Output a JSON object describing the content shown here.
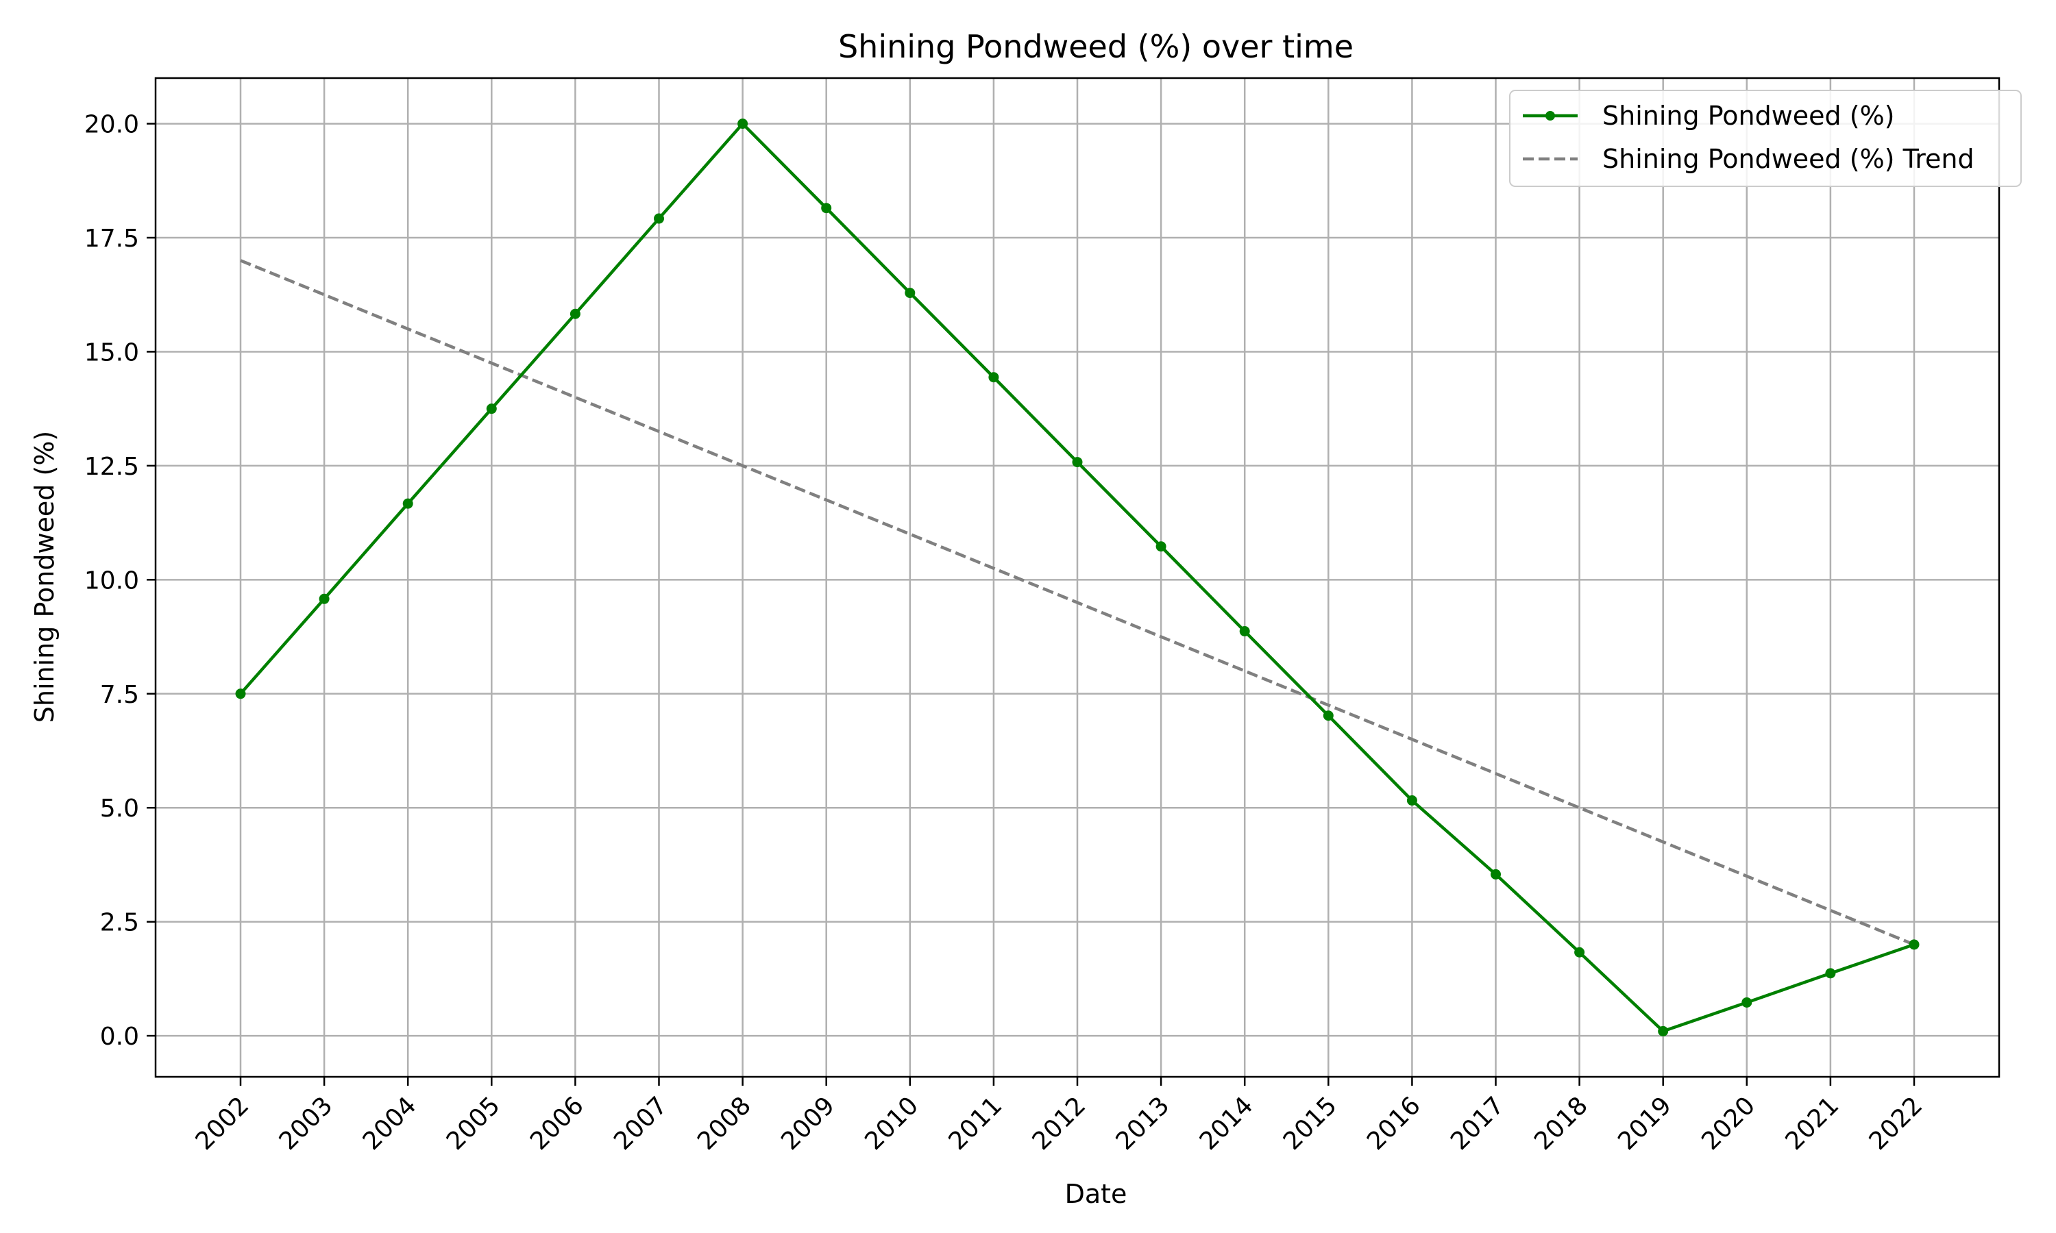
{
  "chart_data": {
    "type": "line",
    "title": "Shining Pondweed (%) over time",
    "xlabel": "Date",
    "ylabel": "Shining Pondweed (%)",
    "x": [
      "2002",
      "2003",
      "2004",
      "2005",
      "2006",
      "2007",
      "2008",
      "2009",
      "2010",
      "2011",
      "2012",
      "2013",
      "2014",
      "2015",
      "2016",
      "2017",
      "2018",
      "2019",
      "2020",
      "2021",
      "2022"
    ],
    "ylim": [
      -0.9,
      21.0
    ],
    "yticks": [
      0.0,
      2.5,
      5.0,
      7.5,
      10.0,
      12.5,
      15.0,
      17.5,
      20.0
    ],
    "ytick_labels": [
      "0.0",
      "2.5",
      "5.0",
      "7.5",
      "10.0",
      "12.5",
      "15.0",
      "17.5",
      "20.0"
    ],
    "grid": true,
    "legend_position": "top-right",
    "series": [
      {
        "name": "Shining Pondweed (%)",
        "style": "solid-with-markers",
        "color": "#008000",
        "values": [
          7.5,
          9.58,
          11.67,
          13.75,
          15.83,
          17.92,
          20.0,
          18.15,
          16.29,
          14.44,
          12.58,
          10.73,
          8.87,
          7.02,
          5.16,
          3.54,
          1.83,
          0.1,
          0.73,
          1.37,
          2.0
        ]
      },
      {
        "name": "Shining Pondweed (%) Trend",
        "style": "dashed",
        "color": "#808080",
        "values": [
          17.0,
          16.25,
          15.5,
          14.75,
          14.0,
          13.25,
          12.5,
          11.75,
          11.0,
          10.25,
          9.5,
          8.75,
          8.0,
          7.25,
          6.5,
          5.75,
          5.0,
          4.25,
          3.5,
          2.75,
          2.0
        ]
      }
    ]
  }
}
